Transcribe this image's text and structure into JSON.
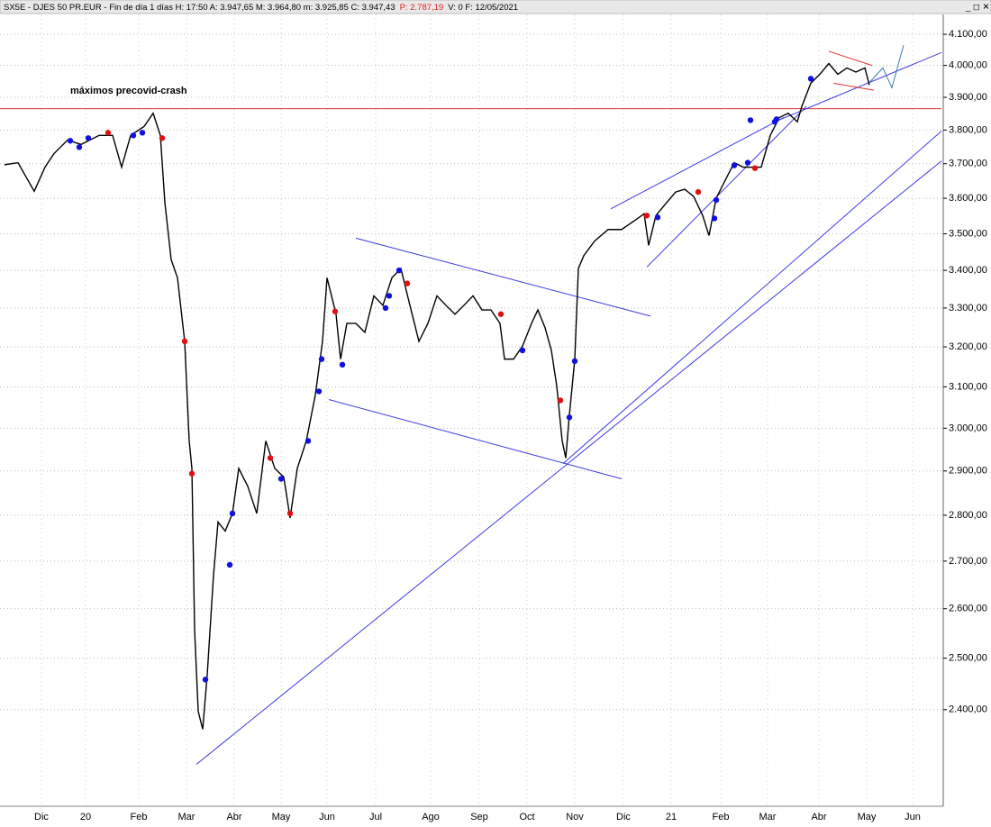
{
  "header": {
    "text": "SX5E - DJES 50 PR.EUR - Fin de día 1 días  H: 17:50  A: 3.947,65  M: 3.964,80  m: 3.925,85  C: 3.947,43",
    "text_red": "P: 2.787,19",
    "text_end": "V: 0  F: 12/05/2021"
  },
  "chart_data": {
    "type": "line",
    "color": "#000000",
    "log_y": true,
    "grid": true,
    "annotation": {
      "text": "máximos precovid-crash",
      "x": 78,
      "value": 3920,
      "color": "#1a1a8c"
    },
    "xlim": [
      0,
      1045
    ],
    "ylim": [
      2223,
      4165
    ],
    "xticks": [
      {
        "value": 46,
        "label": "Dic"
      },
      {
        "value": 95,
        "label": "20"
      },
      {
        "value": 154,
        "label": "Feb"
      },
      {
        "value": 207,
        "label": "Mar"
      },
      {
        "value": 260,
        "label": "Abr"
      },
      {
        "value": 312,
        "label": "May"
      },
      {
        "value": 363,
        "label": "Jun"
      },
      {
        "value": 417,
        "label": "Jul"
      },
      {
        "value": 478,
        "label": "Ago"
      },
      {
        "value": 532,
        "label": "Sep"
      },
      {
        "value": 585,
        "label": "Oct"
      },
      {
        "value": 638,
        "label": "Nov"
      },
      {
        "value": 692,
        "label": "Dic"
      },
      {
        "value": 745,
        "label": "21"
      },
      {
        "value": 800,
        "label": "Feb"
      },
      {
        "value": 852,
        "label": "Mar"
      },
      {
        "value": 909,
        "label": "Abr"
      },
      {
        "value": 962,
        "label": "May"
      },
      {
        "value": 1013,
        "label": "Jun"
      }
    ],
    "yticks": [
      {
        "value": 4100,
        "label": "4.100,00"
      },
      {
        "value": 4000,
        "label": "4.000,00"
      },
      {
        "value": 3900,
        "label": "3.900,00"
      },
      {
        "value": 3800,
        "label": "3.800,00"
      },
      {
        "value": 3700,
        "label": "3.700,00"
      },
      {
        "value": 3600,
        "label": "3.600,00"
      },
      {
        "value": 3500,
        "label": "3.500,00"
      },
      {
        "value": 3400,
        "label": "3.400,00"
      },
      {
        "value": 3300,
        "label": "3.300,00"
      },
      {
        "value": 3200,
        "label": "3.200,00"
      },
      {
        "value": 3100,
        "label": "3.100,00"
      },
      {
        "value": 3000,
        "label": "3.000,00"
      },
      {
        "value": 2900,
        "label": "2.900,00"
      },
      {
        "value": 2800,
        "label": "2.800,00"
      },
      {
        "value": 2700,
        "label": "2.700,00"
      },
      {
        "value": 2600,
        "label": "2.600,00"
      },
      {
        "value": 2500,
        "label": "2.500,00"
      },
      {
        "value": 2400,
        "label": "2.400,00"
      }
    ],
    "x": [
      5,
      20,
      38,
      50,
      60,
      75,
      90,
      110,
      125,
      135,
      145,
      160,
      170,
      178,
      183,
      190,
      197,
      205,
      210,
      213,
      216,
      220,
      225,
      230,
      237,
      242,
      250,
      258,
      265,
      275,
      285,
      295,
      305,
      315,
      322,
      330,
      340,
      350,
      358,
      363,
      368,
      373,
      378,
      385,
      395,
      405,
      415,
      425,
      435,
      445,
      455,
      465,
      475,
      485,
      495,
      505,
      515,
      525,
      535,
      545,
      555,
      560,
      570,
      580,
      590,
      597,
      605,
      612,
      618,
      624,
      628,
      632,
      638,
      642,
      648,
      660,
      675,
      690,
      705,
      715,
      720,
      728,
      740,
      750,
      760,
      770,
      780,
      787,
      795,
      805,
      815,
      825,
      835,
      845,
      855,
      865,
      875,
      885,
      890,
      900,
      910,
      920,
      930,
      940,
      950,
      960,
      965
    ],
    "values": [
      3697,
      3703,
      3620,
      3690,
      3730,
      3770,
      3757,
      3784,
      3784,
      3690,
      3784,
      3811,
      3851,
      3784,
      3588,
      3429,
      3380,
      3214,
      2970,
      2906,
      2557,
      2397,
      2363,
      2467,
      2670,
      2785,
      2765,
      2804,
      2906,
      2865,
      2804,
      2970,
      2906,
      2886,
      2794,
      2906,
      2970,
      3080,
      3214,
      3380,
      3332,
      3284,
      3169,
      3260,
      3260,
      3237,
      3332,
      3307,
      3380,
      3405,
      3307,
      3214,
      3260,
      3332,
      3307,
      3284,
      3307,
      3332,
      3295,
      3295,
      3260,
      3169,
      3169,
      3202,
      3260,
      3295,
      3249,
      3191,
      3102,
      2970,
      2930,
      3031,
      3169,
      3405,
      3440,
      3480,
      3512,
      3512,
      3538,
      3556,
      3468,
      3551,
      3588,
      3618,
      3626,
      3605,
      3551,
      3495,
      3600,
      3652,
      3703,
      3690,
      3690,
      3690,
      3784,
      3838,
      3851,
      3825,
      3872,
      3944,
      3972,
      4006,
      3972,
      3992,
      3979,
      3992,
      3938
    ],
    "hline": {
      "value": 3865,
      "color": "#e03030"
    },
    "trend_lines": [
      {
        "color": "#3a3ae0",
        "points": [
          [
            218,
            2298
          ],
          [
            1045,
            3708
          ]
        ]
      },
      {
        "color": "#3a3ae0",
        "points": [
          [
            625,
            2917
          ],
          [
            1045,
            3797
          ]
        ]
      },
      {
        "color": "#3a3ae0",
        "points": [
          [
            395,
            3488
          ],
          [
            722,
            3279
          ]
        ]
      },
      {
        "color": "#3a3ae0",
        "points": [
          [
            365,
            3069
          ],
          [
            690,
            2882
          ]
        ]
      },
      {
        "color": "#3a3ae0",
        "points": [
          [
            678,
            3570
          ],
          [
            870,
            3838
          ]
        ]
      },
      {
        "color": "#3a3ae0",
        "points": [
          [
            718,
            3409
          ],
          [
            895,
            3872
          ]
        ]
      },
      {
        "color": "#3a3ae0",
        "points": [
          [
            860,
            3825
          ],
          [
            1045,
            4041
          ]
        ]
      },
      {
        "color": "#e03030",
        "points": [
          [
            920,
            4045
          ],
          [
            968,
            4000
          ]
        ]
      },
      {
        "color": "#e03030",
        "points": [
          [
            925,
            3944
          ],
          [
            970,
            3922
          ]
        ]
      },
      {
        "color": "#3a7ab8",
        "points": [
          [
            965,
            3946
          ],
          [
            980,
            3992
          ],
          [
            990,
            3930
          ],
          [
            1003,
            4065
          ]
        ]
      }
    ],
    "markers": [
      {
        "color": "#1010e0",
        "x": [
          78,
          88,
          98,
          148,
          158,
          228,
          255,
          258,
          312,
          342,
          354,
          357,
          380,
          428,
          432,
          443,
          580,
          632,
          638,
          730,
          795,
          793,
          815,
          830,
          860,
          862,
          900,
          833
        ],
        "values": [
          3768,
          3749,
          3776,
          3784,
          3792,
          2458,
          2692,
          2804,
          2882,
          2970,
          3089,
          3169,
          3155,
          3300,
          3332,
          3400,
          3191,
          3026,
          3164,
          3546,
          3595,
          3543,
          3695,
          3703,
          3825,
          3833,
          3958,
          3830
        ]
      },
      {
        "color": "#e01010",
        "x": [
          120,
          180,
          205,
          213,
          300,
          322,
          372,
          452,
          556,
          622,
          718,
          775,
          838
        ],
        "values": [
          3792,
          3776,
          3214,
          2894,
          2930,
          2804,
          3291,
          3365,
          3284,
          3067,
          3551,
          3618,
          3687
        ]
      }
    ]
  }
}
